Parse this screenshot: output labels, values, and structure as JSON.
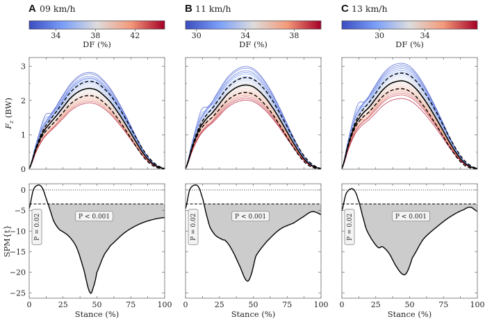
{
  "figure": {
    "colormap": {
      "low": "#3b4cc0",
      "mid": "#dddddd",
      "high": "#b40426",
      "end": "#7a0a22"
    },
    "colorbar_label": "DF (%)",
    "top_ylabel_main": "F",
    "top_ylabel_sub": "z",
    "top_ylabel_unit": " (BW)",
    "bottom_ylabel": "SPM{t}",
    "xlabel": "Stance (%)"
  },
  "chart_data": [
    {
      "type": "line",
      "panel_letter": "A",
      "title": "09 km/h",
      "colorbar": {
        "range": [
          31.3,
          45.0
        ],
        "ticks": [
          "34",
          "38",
          "42"
        ],
        "tick_values": [
          34,
          38,
          42
        ]
      },
      "force": {
        "ylim": [
          0,
          3.25
        ],
        "yticks": [
          0,
          1,
          2,
          3
        ],
        "xlim": [
          0,
          100
        ],
        "x": [
          0,
          5,
          10,
          15,
          20,
          25,
          30,
          35,
          40,
          45,
          50,
          55,
          60,
          65,
          70,
          75,
          80,
          85,
          90,
          95,
          100
        ],
        "mean": [
          0.02,
          0.6,
          1.05,
          1.32,
          1.55,
          1.8,
          2.05,
          2.22,
          2.32,
          2.35,
          2.3,
          2.15,
          1.95,
          1.68,
          1.38,
          1.05,
          0.72,
          0.42,
          0.2,
          0.07,
          0.02
        ],
        "sd": 0.19,
        "trial_df": [
          31.8,
          32.5,
          33,
          33.6,
          34.2,
          34.8,
          35.3,
          35.9,
          36.4,
          37,
          37.6,
          38.2,
          38.8,
          39.4,
          40,
          40.7,
          41.4,
          42.1,
          43,
          44.2
        ],
        "trial_scale": [
          1.2,
          1.18,
          1.15,
          1.13,
          1.12,
          1.1,
          1.08,
          1.06,
          1.04,
          1.02,
          1.0,
          0.98,
          0.96,
          0.94,
          0.92,
          0.9,
          0.88,
          0.86,
          0.84,
          0.82
        ]
      },
      "spm": {
        "ylim": [
          -26.3,
          1.5
        ],
        "yticks": [
          0,
          -5,
          -10,
          -15,
          -20,
          -25
        ],
        "xticks": [
          0,
          25,
          50,
          75,
          100
        ],
        "threshold": -3.4,
        "x": [
          0,
          3,
          7,
          10,
          13,
          15,
          18,
          22,
          25,
          30,
          35,
          40,
          45,
          48,
          50,
          55,
          60,
          70,
          80,
          90,
          100
        ],
        "t": [
          -4.5,
          0,
          1.2,
          0.3,
          -2.5,
          -4.5,
          -7.5,
          -9.5,
          -10.2,
          -11.5,
          -14,
          -19,
          -25,
          -23,
          -20,
          -16,
          -13.5,
          -10.5,
          -8.5,
          -7.3,
          -6.7
        ],
        "cluster_labels": [
          "P = 0.02",
          "P < 0.001"
        ]
      }
    },
    {
      "type": "line",
      "panel_letter": "B",
      "title": "11 km/h",
      "colorbar": {
        "range": [
          29.1,
          40.2
        ],
        "ticks": [
          "30",
          "34",
          "38"
        ],
        "tick_values": [
          30,
          34,
          38
        ]
      },
      "force": {
        "ylim": [
          0,
          3.25
        ],
        "yticks": [
          0,
          1,
          2,
          3
        ],
        "xlim": [
          0,
          100
        ],
        "x": [
          0,
          5,
          10,
          15,
          20,
          25,
          30,
          35,
          40,
          45,
          50,
          55,
          60,
          65,
          70,
          75,
          80,
          85,
          90,
          95,
          100
        ],
        "mean": [
          0.02,
          0.65,
          1.15,
          1.45,
          1.65,
          1.9,
          2.15,
          2.32,
          2.42,
          2.45,
          2.4,
          2.25,
          2.03,
          1.75,
          1.43,
          1.08,
          0.74,
          0.43,
          0.2,
          0.07,
          0.02
        ],
        "sd": 0.2,
        "trial_df": [
          29.6,
          30.2,
          30.8,
          31.3,
          31.8,
          32.3,
          32.8,
          33.3,
          33.8,
          34.3,
          34.8,
          35.3,
          35.8,
          36.3,
          36.8,
          37.4,
          38,
          38.6,
          39.2,
          39.8
        ],
        "trial_scale": [
          1.22,
          1.2,
          1.17,
          1.15,
          1.13,
          1.1,
          1.08,
          1.06,
          1.04,
          1.02,
          1.0,
          0.98,
          0.96,
          0.94,
          0.92,
          0.9,
          0.88,
          0.86,
          0.84,
          0.82
        ]
      },
      "spm": {
        "ylim": [
          -26.3,
          1.5
        ],
        "yticks": [
          0,
          -5,
          -10,
          -15,
          -20,
          -25
        ],
        "xticks": [
          0,
          25,
          50,
          75,
          100
        ],
        "threshold": -3.4,
        "x": [
          0,
          3,
          7,
          10,
          13,
          15,
          18,
          22,
          27,
          30,
          35,
          40,
          45,
          48,
          52,
          60,
          70,
          80,
          87,
          93,
          97,
          100
        ],
        "t": [
          -4.5,
          0,
          1.2,
          0.5,
          -2.5,
          -5.5,
          -9,
          -11,
          -12,
          -12.5,
          -15,
          -18.5,
          -22,
          -21,
          -16,
          -12.5,
          -9.5,
          -8,
          -6.5,
          -5.3,
          -5.5,
          -6
        ],
        "cluster_labels": [
          "P = 0.02",
          "P < 0.001"
        ]
      }
    },
    {
      "type": "line",
      "panel_letter": "C",
      "title": "13 km/h",
      "colorbar": {
        "range": [
          26.7,
          38.6
        ],
        "ticks": [
          "30",
          "34"
        ],
        "tick_values": [
          30,
          34
        ]
      },
      "force": {
        "ylim": [
          0,
          3.25
        ],
        "yticks": [
          0,
          1,
          2,
          3
        ],
        "xlim": [
          0,
          100
        ],
        "x": [
          0,
          5,
          10,
          15,
          20,
          25,
          30,
          35,
          40,
          45,
          50,
          55,
          60,
          65,
          70,
          75,
          80,
          85,
          90,
          95,
          100
        ],
        "mean": [
          0.02,
          0.75,
          1.3,
          1.6,
          1.8,
          2.05,
          2.3,
          2.47,
          2.55,
          2.57,
          2.5,
          2.33,
          2.08,
          1.78,
          1.45,
          1.1,
          0.75,
          0.44,
          0.2,
          0.07,
          0.02
        ],
        "sd": 0.21,
        "trial_df": [
          27.2,
          27.8,
          28.4,
          29,
          29.6,
          30.1,
          30.7,
          31.2,
          31.8,
          32.3,
          32.9,
          33.4,
          34,
          34.5,
          35.1,
          35.7,
          36.3,
          36.9,
          37.5,
          38.2
        ],
        "trial_scale": [
          1.2,
          1.18,
          1.16,
          1.14,
          1.12,
          1.1,
          1.08,
          1.06,
          1.04,
          1.02,
          1.0,
          0.98,
          0.96,
          0.94,
          0.92,
          0.9,
          0.88,
          0.86,
          0.84,
          0.8
        ]
      },
      "spm": {
        "ylim": [
          -26.3,
          1.5
        ],
        "yticks": [
          0,
          -5,
          -10,
          -15,
          -20,
          -25
        ],
        "xticks": [
          0,
          25,
          50,
          75,
          100
        ],
        "threshold": -3.4,
        "x": [
          0,
          3,
          7,
          10,
          13,
          15,
          18,
          22,
          27,
          30,
          35,
          40,
          45,
          48,
          52,
          60,
          70,
          80,
          90,
          95,
          100
        ],
        "t": [
          -5,
          -1,
          0.3,
          -0.5,
          -3.3,
          -6,
          -9.5,
          -12,
          -14,
          -13.8,
          -15.5,
          -18.5,
          -20.5,
          -20,
          -16.5,
          -12,
          -9,
          -6.5,
          -4.8,
          -4.2,
          -5.2
        ],
        "cluster_labels": [
          "P = 0.02",
          "P < 0.001"
        ]
      }
    }
  ]
}
